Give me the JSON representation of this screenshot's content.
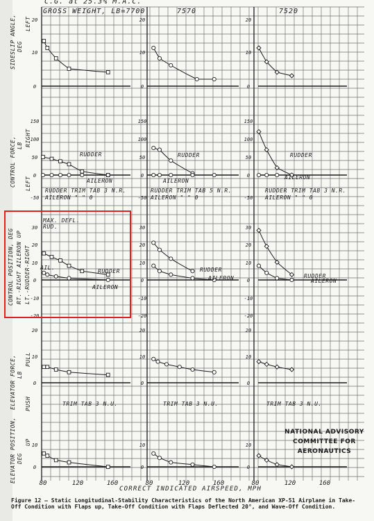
{
  "header": {
    "top_partial": "C.G. at 25.3% M.A.C.",
    "col1_title": "GROSS WEIGHT, LB=7700",
    "col2_title": "7570",
    "col3_title": "7520"
  },
  "row_labels": {
    "sideslip": [
      "SIDESLIP ANGLE,",
      "DEG",
      "LEFT"
    ],
    "control_force": [
      "CONTROL FORCE,",
      "LB",
      "RIGHT",
      "LEFT"
    ],
    "control_position": [
      "CONTROL POSITION, DEG",
      "RT.-RIGHT AILERON UP",
      "LT.-RUDDER-RIGHT"
    ],
    "elevator_force": [
      "ELEVATOR FORCE,",
      "LB",
      "PULL",
      "PUSH"
    ],
    "elevator_position": [
      "ELEVATOR POSITION,",
      "DEG",
      "UP"
    ]
  },
  "annotations": {
    "rudder": "RUDDER",
    "aileron": "AILERON",
    "trim1_line1": "RUDDER TRIM TAB 3 N.R.",
    "trim1_line2": "AILERON \" \" 0",
    "trim2_line1": "RUDDER TRIM TAB 5 N.R.",
    "trim2_line2": "AILERON \" \" 0",
    "trim3_line1": "RUDDER TRIM TAB 3 N.R.",
    "trim3_line2": "AILERON \" \" 0",
    "max_defl": "MAX. DEFL.",
    "rud": "RUD.",
    "ail": "AIL.",
    "elev_trim1": "TRIM TAB 3 N.U.",
    "elev_trim2": "TRIM TAB 3 N.U.",
    "elev_trim3": "TRIM TAB 3 N.U."
  },
  "x_axis_title": "CORRECT INDICATED AIRSPEED, MPH",
  "naca": [
    "NATIONAL ADVISORY",
    "COMMITTEE FOR AERONAUTICS"
  ],
  "caption": "Figure 12 — Static Longitudinal-Stability Characteristics of the North American XP-51 Airplane in Take-Off Condition with Flaps up, Take-Off Condition with Flaps Deflected 20°, and Wave-Off Condition.",
  "colors": {
    "ink": "#1a1a1a",
    "grid": "#6f6f6f",
    "highlight": "#e0201c",
    "paper": "#f7f7f4"
  },
  "chart_data": [
    {
      "type": "line",
      "panel": "sideslip",
      "x_ticks": [
        80,
        120,
        160
      ],
      "y_ticks": [
        0,
        10,
        20
      ],
      "series": [
        {
          "column": 1,
          "x": [
            81,
            85,
            95,
            110,
            155
          ],
          "y": [
            13,
            11,
            8,
            5,
            4
          ]
        },
        {
          "column": 2,
          "x": [
            85,
            92,
            105,
            135,
            155
          ],
          "y": [
            11,
            8,
            6,
            2,
            2
          ]
        },
        {
          "column": 3,
          "x": [
            84,
            93,
            105,
            122
          ],
          "y": [
            11,
            7,
            4,
            3
          ]
        }
      ]
    },
    {
      "type": "line",
      "panel": "control_force",
      "y_ticks": [
        -50,
        0,
        50,
        100,
        150
      ],
      "series": [
        {
          "column": 1,
          "name": "RUDDER",
          "x": [
            80,
            90,
            100,
            110,
            125,
            155
          ],
          "y": [
            50,
            45,
            38,
            30,
            10,
            0
          ]
        },
        {
          "column": 1,
          "name": "AILERON",
          "x": [
            80,
            90,
            100,
            110,
            125,
            155
          ],
          "y": [
            0,
            0,
            0,
            0,
            0,
            0
          ]
        },
        {
          "column": 2,
          "name": "RUDDER",
          "x": [
            85,
            92,
            105,
            130
          ],
          "y": [
            75,
            70,
            40,
            5
          ]
        },
        {
          "column": 2,
          "name": "AILERON",
          "x": [
            85,
            92,
            105,
            130,
            155
          ],
          "y": [
            0,
            0,
            0,
            0,
            0
          ]
        },
        {
          "column": 3,
          "name": "RUDDER",
          "x": [
            84,
            93,
            105,
            122
          ],
          "y": [
            120,
            70,
            20,
            0
          ]
        },
        {
          "column": 3,
          "name": "AILERON",
          "x": [
            84,
            93,
            105,
            122
          ],
          "y": [
            0,
            0,
            0,
            0
          ]
        }
      ]
    },
    {
      "type": "line",
      "panel": "control_position",
      "y_ticks": [
        -20,
        -10,
        0,
        10,
        20,
        30
      ],
      "series": [
        {
          "column": 1,
          "name": "RUDDER",
          "x": [
            81,
            90,
            100,
            110,
            125,
            155
          ],
          "y": [
            15,
            13,
            11,
            8,
            5,
            3
          ]
        },
        {
          "column": 1,
          "name": "AILERON",
          "x": [
            81,
            85,
            95,
            110,
            155
          ],
          "y": [
            4,
            3,
            2,
            1,
            0
          ]
        },
        {
          "column": 2,
          "name": "RUDDER",
          "x": [
            85,
            92,
            105,
            130
          ],
          "y": [
            21,
            17,
            12,
            5
          ]
        },
        {
          "column": 2,
          "name": "AILERON",
          "x": [
            85,
            92,
            105,
            130,
            155
          ],
          "y": [
            8,
            5,
            3,
            1,
            0
          ]
        },
        {
          "column": 3,
          "name": "RUDDER",
          "x": [
            84,
            93,
            105,
            122
          ],
          "y": [
            28,
            19,
            10,
            3
          ]
        },
        {
          "column": 3,
          "name": "AILERON",
          "x": [
            84,
            93,
            105,
            122
          ],
          "y": [
            8,
            4,
            1,
            0
          ]
        }
      ]
    },
    {
      "type": "line",
      "panel": "elevator_force",
      "y_ticks": [
        0,
        10,
        20
      ],
      "series": [
        {
          "column": 1,
          "x": [
            81,
            85,
            95,
            110,
            155
          ],
          "y": [
            6,
            6,
            5,
            4,
            3
          ]
        },
        {
          "column": 2,
          "x": [
            85,
            90,
            100,
            115,
            130,
            155
          ],
          "y": [
            9,
            8,
            7,
            6,
            5,
            4
          ]
        },
        {
          "column": 3,
          "x": [
            84,
            93,
            105,
            122
          ],
          "y": [
            8,
            7,
            6,
            5
          ]
        }
      ]
    },
    {
      "type": "line",
      "panel": "elevator_position",
      "x_ticks": [
        80,
        120,
        160
      ],
      "y_ticks": [
        0,
        10
      ],
      "series": [
        {
          "column": 1,
          "x": [
            81,
            85,
            95,
            110,
            155
          ],
          "y": [
            6,
            5,
            3,
            2,
            0
          ]
        },
        {
          "column": 2,
          "x": [
            85,
            92,
            105,
            130,
            155
          ],
          "y": [
            6,
            4,
            2,
            1,
            0
          ]
        },
        {
          "column": 3,
          "x": [
            84,
            93,
            105,
            122
          ],
          "y": [
            5,
            3,
            1,
            0
          ]
        }
      ]
    }
  ]
}
